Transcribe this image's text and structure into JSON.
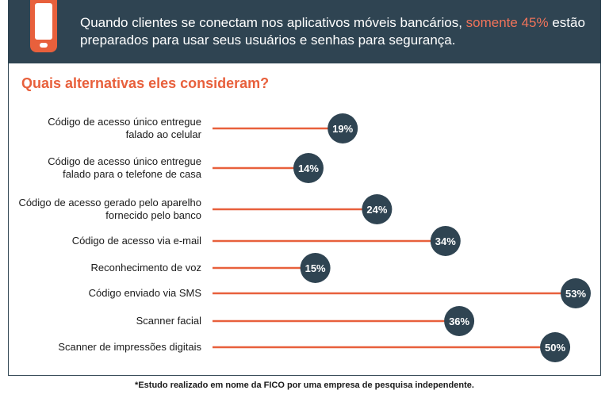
{
  "header": {
    "text_before": "Quando clientes se conectam nos aplicativos móveis bancários, ",
    "highlight": "somente 45%",
    "text_after": " estão preparados para usar seus usuários e senhas para segurança.",
    "icon": "smartphone-icon",
    "background_color": "#2f4452",
    "highlight_color": "#f0735a"
  },
  "chart_data": {
    "type": "bar",
    "title": "Quais alternativas eles consideram?",
    "categories": [
      [
        "Código de acesso único entregue",
        "falado ao celular"
      ],
      [
        "Código de acesso único entregue",
        "falado para o telefone de casa"
      ],
      [
        "Código de acesso gerado pelo aparelho",
        "fornecido pelo banco"
      ],
      [
        "Código de acesso via e-mail"
      ],
      [
        "Reconhecimento de voz"
      ],
      [
        "Código enviado via SMS"
      ],
      [
        "Scanner facial"
      ],
      [
        "Scanner de impressões digitais"
      ]
    ],
    "values": [
      19,
      14,
      24,
      34,
      15,
      53,
      36,
      50
    ],
    "value_labels": [
      "19%",
      "14%",
      "24%",
      "34%",
      "15%",
      "53%",
      "36%",
      "50%"
    ],
    "xlim": [
      0,
      53
    ],
    "orientation": "horizontal",
    "bar_color": "#e8603c",
    "marker_color": "#2f4452"
  },
  "footnote": "*Estudo realizado em nome da FICO por uma empresa de pesquisa independente."
}
